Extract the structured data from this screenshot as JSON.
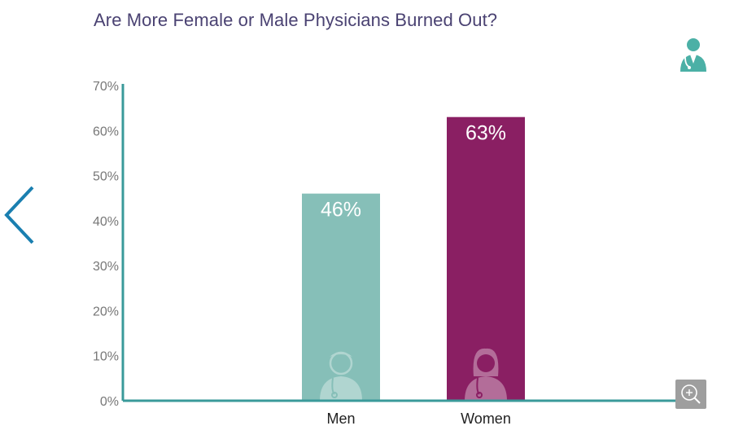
{
  "chart_data": {
    "type": "bar",
    "title": "Are More Female or Male Physicians Burned Out?",
    "categories": [
      "Men",
      "Women"
    ],
    "values": [
      46,
      63
    ],
    "data_labels": [
      "46%",
      "63%"
    ],
    "ylim": [
      0,
      70
    ],
    "yticks": [
      "0%",
      "10%",
      "20%",
      "30%",
      "40%",
      "50%",
      "60%",
      "70%"
    ],
    "xlabel": "",
    "ylabel": "",
    "grid": false,
    "colors": [
      "#86bfb8",
      "#8a1f63"
    ],
    "axis_color": "#3a9a9a",
    "bar_icons": [
      "male-doctor-icon",
      "female-doctor-icon"
    ]
  },
  "ui": {
    "prev_icon": "chevron-left-icon",
    "corner_icon": "doctor-icon",
    "zoom_icon": "zoom-in-icon",
    "accent_color": "#1a7fb0"
  }
}
